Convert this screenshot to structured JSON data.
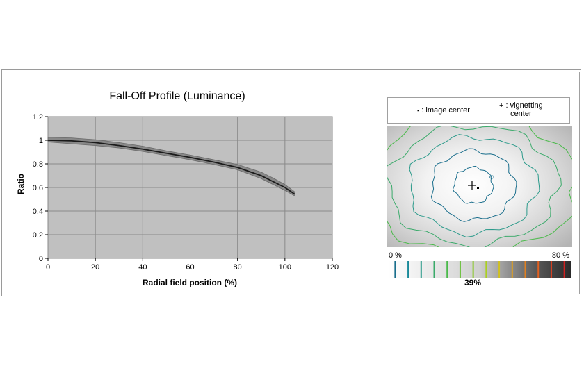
{
  "chart_data": {
    "type": "line",
    "title": "Fall-Off Profile (Luminance)",
    "xlabel": "Radial field position (%)",
    "ylabel": "Ratio",
    "xlim": [
      0,
      120
    ],
    "ylim": [
      0,
      1.2
    ],
    "xticks": [
      "0",
      "20",
      "40",
      "60",
      "80",
      "100",
      "120"
    ],
    "yticks": [
      "0",
      "0.2",
      "0.4",
      "0.6",
      "0.8",
      "1",
      "1.2"
    ],
    "grid": true,
    "background": "#c0c0c0",
    "series": [
      {
        "role": "mean",
        "color": "#1a1a1a",
        "x": [
          0,
          10,
          20,
          30,
          40,
          50,
          60,
          70,
          80,
          90,
          95,
          100,
          104
        ],
        "y": [
          1.0,
          0.995,
          0.98,
          0.955,
          0.925,
          0.89,
          0.855,
          0.815,
          0.77,
          0.7,
          0.65,
          0.6,
          0.545
        ]
      }
    ],
    "band": {
      "color": "#888888",
      "x": [
        0,
        10,
        20,
        30,
        40,
        50,
        60,
        70,
        80,
        90,
        95,
        100,
        104
      ],
      "upper": [
        1.025,
        1.02,
        1.005,
        0.98,
        0.95,
        0.91,
        0.875,
        0.835,
        0.795,
        0.73,
        0.68,
        0.625,
        0.565
      ],
      "lower": [
        0.985,
        0.97,
        0.955,
        0.935,
        0.905,
        0.87,
        0.835,
        0.795,
        0.75,
        0.675,
        0.625,
        0.575,
        0.53
      ]
    }
  },
  "legend": {
    "image_center_label": ": image center",
    "vignetting_label_line1": ": vignetting",
    "vignetting_label_line2": "center",
    "image_center_marker": "▪",
    "vignetting_marker": "+"
  },
  "vignetting_map": {
    "contour_colors": [
      "#1a6e8c",
      "#1a6e8c",
      "#2a9a8a",
      "#3aaa6a",
      "#4aba4a"
    ]
  },
  "scale": {
    "min_label": "0 %",
    "max_label": "80 %",
    "value_label": "39%",
    "tick_colors": [
      "#1a6e8c",
      "#1a8a9a",
      "#2a9a8a",
      "#3aaa6a",
      "#4aba4a",
      "#6ac03a",
      "#8ac82a",
      "#aad020",
      "#d0c020",
      "#e0a020",
      "#e08020",
      "#e06020",
      "#e04020",
      "#d02020"
    ]
  }
}
